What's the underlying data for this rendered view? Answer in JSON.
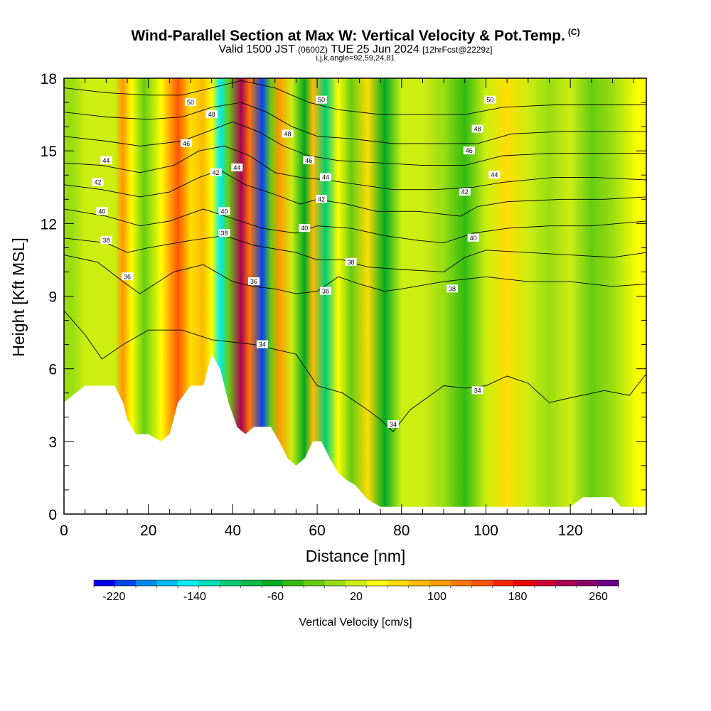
{
  "header": {
    "title": "Wind-Parallel Section at Max W: Vertical Velocity & Pot.Temp.",
    "copyright": "(C)",
    "valid_main": "Valid 1500 JST",
    "valid_utc": "(0600Z)",
    "valid_date": "TUE 25 Jun 2024",
    "forecast": "[12hrFcst@2229z]",
    "indices": "i,j,k,angle=92,59,24,81"
  },
  "chart_data": {
    "type": "heatmap",
    "xlabel": "Distance [nm]",
    "ylabel": "Height [Kft MSL]",
    "xlim": [
      0,
      138
    ],
    "ylim": [
      0,
      18
    ],
    "x_ticks": [
      0,
      20,
      40,
      60,
      80,
      100,
      120
    ],
    "y_ticks": [
      0,
      3,
      6,
      9,
      12,
      15,
      18
    ],
    "colorbar": {
      "label": "Vertical Velocity [cm/s]",
      "tick_labels": [
        "-220",
        "-140",
        "-60",
        "20",
        "100",
        "180",
        "260"
      ],
      "tick_values": [
        -220,
        -140,
        -60,
        20,
        100,
        180,
        260
      ],
      "min": -240,
      "max": 280,
      "colors": [
        "#0000ee",
        "#0044ee",
        "#0088ee",
        "#00bbee",
        "#00eeee",
        "#00e0bb",
        "#00cc77",
        "#00bb44",
        "#00aa22",
        "#33bb11",
        "#66cc11",
        "#99dd11",
        "#ccee11",
        "#ffff00",
        "#ffdd00",
        "#ffbb00",
        "#ff9900",
        "#ff7700",
        "#ff5500",
        "#ff2200",
        "#ee0000",
        "#cc0033",
        "#aa0055",
        "#880066",
        "#660088"
      ]
    },
    "columns": [
      {
        "x": 2,
        "w": 0
      },
      {
        "x": 5,
        "w": 10
      },
      {
        "x": 9,
        "w": 20
      },
      {
        "x": 12,
        "w": 30
      },
      {
        "x": 14,
        "w": 95
      },
      {
        "x": 16,
        "w": 40
      },
      {
        "x": 19,
        "w": -30
      },
      {
        "x": 23,
        "w": 40
      },
      {
        "x": 27,
        "w": 140
      },
      {
        "x": 30,
        "w": 60
      },
      {
        "x": 33,
        "w": 80
      },
      {
        "x": 35,
        "w": 40
      },
      {
        "x": 37,
        "w": -140
      },
      {
        "x": 39,
        "w": -20
      },
      {
        "x": 42,
        "w": 230
      },
      {
        "x": 44,
        "w": 130
      },
      {
        "x": 47,
        "w": -200
      },
      {
        "x": 49,
        "w": -20
      },
      {
        "x": 51,
        "w": 110
      },
      {
        "x": 54,
        "w": 20
      },
      {
        "x": 57,
        "w": -60
      },
      {
        "x": 59,
        "w": 90
      },
      {
        "x": 62,
        "w": -110
      },
      {
        "x": 65,
        "w": 50
      },
      {
        "x": 68,
        "w": -20
      },
      {
        "x": 72,
        "w": 60
      },
      {
        "x": 76,
        "w": -60
      },
      {
        "x": 80,
        "w": 10
      },
      {
        "x": 85,
        "w": 20
      },
      {
        "x": 90,
        "w": -10
      },
      {
        "x": 95,
        "w": -50
      },
      {
        "x": 100,
        "w": 30
      },
      {
        "x": 105,
        "w": 60
      },
      {
        "x": 110,
        "w": 20
      },
      {
        "x": 115,
        "w": -10
      },
      {
        "x": 120,
        "w": 10
      },
      {
        "x": 125,
        "w": -20
      },
      {
        "x": 130,
        "w": 0
      },
      {
        "x": 136,
        "w": 40
      }
    ],
    "terrain": [
      [
        0,
        4.6
      ],
      [
        2,
        4.9
      ],
      [
        5,
        5.3
      ],
      [
        8,
        5.3
      ],
      [
        12,
        5.3
      ],
      [
        14,
        4.6
      ],
      [
        15,
        3.9
      ],
      [
        17,
        3.3
      ],
      [
        20,
        3.3
      ],
      [
        23,
        3.0
      ],
      [
        25,
        3.3
      ],
      [
        27,
        4.6
      ],
      [
        30,
        5.3
      ],
      [
        33,
        5.3
      ],
      [
        35,
        6.6
      ],
      [
        37,
        6.0
      ],
      [
        39,
        4.6
      ],
      [
        41,
        3.6
      ],
      [
        43,
        3.3
      ],
      [
        45,
        3.6
      ],
      [
        47,
        3.6
      ],
      [
        49,
        3.6
      ],
      [
        51,
        3.0
      ],
      [
        53,
        2.3
      ],
      [
        55,
        2.0
      ],
      [
        57,
        2.3
      ],
      [
        59,
        3.0
      ],
      [
        61,
        3.0
      ],
      [
        63,
        2.3
      ],
      [
        65,
        1.7
      ],
      [
        67,
        1.4
      ],
      [
        69,
        1.2
      ],
      [
        72,
        0.6
      ],
      [
        75,
        0.3
      ],
      [
        80,
        0.3
      ],
      [
        100,
        0.3
      ],
      [
        120,
        0.3
      ],
      [
        123,
        0.7
      ],
      [
        130,
        0.7
      ],
      [
        132,
        0.3
      ],
      [
        138,
        0.3
      ]
    ],
    "theta_contours": [
      {
        "value": 34,
        "label": "34",
        "points": [
          [
            0,
            8.4
          ],
          [
            5,
            7.4
          ],
          [
            9,
            6.4
          ],
          [
            14,
            7.0
          ],
          [
            20,
            7.6
          ],
          [
            28,
            7.6
          ],
          [
            35,
            7.2
          ],
          [
            45,
            7.0
          ],
          [
            55,
            6.6
          ],
          [
            60,
            5.3
          ],
          [
            66,
            5.0
          ],
          [
            72,
            4.3
          ],
          [
            75,
            3.9
          ],
          [
            78,
            3.4
          ],
          [
            82,
            4.3
          ],
          [
            90,
            5.3
          ],
          [
            95,
            5.2
          ],
          [
            100,
            5.3
          ],
          [
            105,
            5.7
          ],
          [
            110,
            5.4
          ],
          [
            115,
            4.6
          ],
          [
            120,
            4.8
          ],
          [
            128,
            5.1
          ],
          [
            134,
            4.9
          ],
          [
            138,
            5.8
          ]
        ],
        "labels": [
          [
            47,
            7.0
          ],
          [
            78,
            3.7
          ],
          [
            98,
            5.1
          ]
        ]
      },
      {
        "value": 36,
        "label": "36",
        "points": [
          [
            0,
            10.7
          ],
          [
            8,
            10.4
          ],
          [
            14,
            9.6
          ],
          [
            18,
            9.1
          ],
          [
            26,
            10.0
          ],
          [
            33,
            10.3
          ],
          [
            40,
            9.6
          ],
          [
            45,
            9.4
          ],
          [
            50,
            9.3
          ],
          [
            55,
            9.1
          ],
          [
            60,
            9.2
          ],
          [
            65,
            9.8
          ],
          [
            70,
            9.5
          ],
          [
            76,
            9.2
          ],
          [
            80,
            9.3
          ],
          [
            90,
            9.6
          ],
          [
            100,
            9.8
          ],
          [
            110,
            9.6
          ],
          [
            120,
            9.6
          ],
          [
            130,
            9.4
          ],
          [
            138,
            9.5
          ]
        ],
        "labels": [
          [
            15,
            9.8
          ],
          [
            45,
            9.6
          ],
          [
            62,
            9.2
          ]
        ]
      },
      {
        "value": 38,
        "label": "38",
        "points": [
          [
            0,
            11.4
          ],
          [
            10,
            11.2
          ],
          [
            15,
            10.8
          ],
          [
            20,
            11.0
          ],
          [
            30,
            11.3
          ],
          [
            38,
            11.5
          ],
          [
            45,
            11.1
          ],
          [
            55,
            10.8
          ],
          [
            60,
            10.5
          ],
          [
            66,
            10.5
          ],
          [
            72,
            10.2
          ],
          [
            80,
            10.1
          ],
          [
            90,
            10.0
          ],
          [
            95,
            10.6
          ],
          [
            100,
            10.9
          ],
          [
            110,
            10.8
          ],
          [
            120,
            10.7
          ],
          [
            130,
            10.6
          ],
          [
            138,
            10.8
          ]
        ],
        "labels": [
          [
            10,
            11.3
          ],
          [
            38,
            11.6
          ],
          [
            68,
            10.4
          ],
          [
            92,
            9.3
          ]
        ]
      },
      {
        "value": 40,
        "label": "40",
        "points": [
          [
            0,
            12.6
          ],
          [
            10,
            12.3
          ],
          [
            18,
            11.9
          ],
          [
            25,
            12.1
          ],
          [
            33,
            12.6
          ],
          [
            40,
            12.2
          ],
          [
            47,
            11.8
          ],
          [
            55,
            11.6
          ],
          [
            60,
            11.9
          ],
          [
            68,
            11.8
          ],
          [
            76,
            11.5
          ],
          [
            84,
            11.3
          ],
          [
            90,
            11.2
          ],
          [
            97,
            11.6
          ],
          [
            105,
            11.8
          ],
          [
            115,
            11.9
          ],
          [
            125,
            11.9
          ],
          [
            138,
            12.1
          ]
        ],
        "labels": [
          [
            9,
            12.5
          ],
          [
            38,
            12.5
          ],
          [
            57,
            11.8
          ],
          [
            97,
            11.4
          ]
        ]
      },
      {
        "value": 42,
        "label": "42",
        "points": [
          [
            0,
            13.6
          ],
          [
            9,
            13.4
          ],
          [
            18,
            13.1
          ],
          [
            25,
            13.3
          ],
          [
            32,
            13.9
          ],
          [
            37,
            14.2
          ],
          [
            43,
            13.6
          ],
          [
            50,
            13.2
          ],
          [
            56,
            12.8
          ],
          [
            60,
            13.0
          ],
          [
            67,
            12.8
          ],
          [
            74,
            12.5
          ],
          [
            84,
            12.5
          ],
          [
            94,
            12.3
          ],
          [
            98,
            12.7
          ],
          [
            105,
            12.9
          ],
          [
            118,
            13.0
          ],
          [
            128,
            13.0
          ],
          [
            138,
            13.1
          ]
        ],
        "labels": [
          [
            8,
            13.7
          ],
          [
            36,
            14.1
          ],
          [
            61,
            13.0
          ],
          [
            95,
            13.3
          ]
        ]
      },
      {
        "value": 44,
        "label": "44",
        "points": [
          [
            0,
            14.5
          ],
          [
            9,
            14.4
          ],
          [
            18,
            14.1
          ],
          [
            26,
            14.4
          ],
          [
            32,
            15.0
          ],
          [
            38,
            15.2
          ],
          [
            44,
            14.8
          ],
          [
            50,
            14.1
          ],
          [
            56,
            13.9
          ],
          [
            62,
            13.8
          ],
          [
            70,
            13.6
          ],
          [
            78,
            13.4
          ],
          [
            88,
            13.4
          ],
          [
            97,
            13.5
          ],
          [
            104,
            13.7
          ],
          [
            116,
            13.9
          ],
          [
            126,
            13.9
          ],
          [
            138,
            13.8
          ]
        ],
        "labels": [
          [
            10,
            14.6
          ],
          [
            41,
            14.3
          ],
          [
            62,
            13.9
          ],
          [
            102,
            14.0
          ]
        ]
      },
      {
        "value": 46,
        "label": "46",
        "points": [
          [
            0,
            15.6
          ],
          [
            10,
            15.4
          ],
          [
            18,
            15.2
          ],
          [
            28,
            15.4
          ],
          [
            34,
            15.8
          ],
          [
            40,
            16.2
          ],
          [
            46,
            15.8
          ],
          [
            52,
            15.2
          ],
          [
            58,
            14.8
          ],
          [
            65,
            14.6
          ],
          [
            75,
            14.5
          ],
          [
            85,
            14.4
          ],
          [
            95,
            14.4
          ],
          [
            104,
            14.8
          ],
          [
            116,
            14.9
          ],
          [
            126,
            14.9
          ],
          [
            138,
            14.9
          ]
        ],
        "labels": [
          [
            29,
            15.3
          ],
          [
            58,
            14.6
          ],
          [
            96,
            15.0
          ]
        ]
      },
      {
        "value": 48,
        "label": "48",
        "points": [
          [
            0,
            16.6
          ],
          [
            10,
            16.4
          ],
          [
            20,
            16.3
          ],
          [
            28,
            16.4
          ],
          [
            35,
            16.8
          ],
          [
            42,
            17.0
          ],
          [
            48,
            16.6
          ],
          [
            54,
            16.0
          ],
          [
            60,
            15.6
          ],
          [
            68,
            15.5
          ],
          [
            78,
            15.3
          ],
          [
            88,
            15.3
          ],
          [
            98,
            15.3
          ],
          [
            106,
            15.7
          ],
          [
            118,
            15.8
          ],
          [
            128,
            15.8
          ],
          [
            138,
            15.8
          ]
        ],
        "labels": [
          [
            35,
            16.5
          ],
          [
            53,
            15.7
          ],
          [
            98,
            15.9
          ]
        ]
      },
      {
        "value": 50,
        "label": "50",
        "points": [
          [
            0,
            17.6
          ],
          [
            10,
            17.4
          ],
          [
            20,
            17.3
          ],
          [
            28,
            17.3
          ],
          [
            35,
            17.6
          ],
          [
            42,
            17.9
          ],
          [
            50,
            17.6
          ],
          [
            58,
            17.0
          ],
          [
            65,
            16.7
          ],
          [
            75,
            16.5
          ],
          [
            85,
            16.5
          ],
          [
            95,
            16.5
          ],
          [
            104,
            16.8
          ],
          [
            116,
            16.9
          ],
          [
            126,
            16.9
          ],
          [
            138,
            16.9
          ]
        ],
        "labels": [
          [
            30,
            17.0
          ],
          [
            61,
            17.1
          ],
          [
            101,
            17.1
          ]
        ]
      }
    ]
  }
}
